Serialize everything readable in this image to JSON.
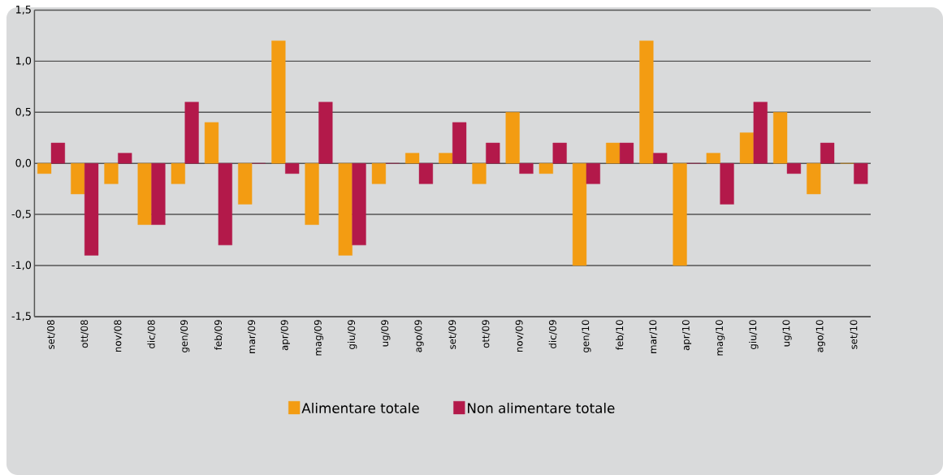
{
  "chart_data": {
    "type": "bar",
    "categories": [
      "set/08",
      "ott/08",
      "nov/08",
      "dic/08",
      "gen/09",
      "feb/09",
      "mar/09",
      "apr/09",
      "mag/09",
      "giu/09",
      "ug/09",
      "ago/09",
      "set/09",
      "ott/09",
      "nov/09",
      "dic/09",
      "gen/10",
      "feb/10",
      "mar/10",
      "apr/10",
      "mag/10",
      "giu/10",
      "ug/10",
      "ago/10",
      "set/10"
    ],
    "series": [
      {
        "name": "Alimentare totale",
        "color": "#f39c12",
        "values": [
          -0.1,
          -0.3,
          -0.2,
          -0.6,
          -0.2,
          0.4,
          -0.4,
          1.2,
          -0.6,
          -0.9,
          -0.2,
          0.1,
          0.1,
          -0.2,
          0.5,
          -0.1,
          -1.0,
          0.2,
          1.2,
          -1.0,
          0.1,
          0.3,
          0.5,
          -0.3,
          0.0
        ]
      },
      {
        "name": "Non alimentare totale",
        "color": "#b3194a",
        "values": [
          0.2,
          -0.9,
          0.1,
          -0.6,
          0.6,
          -0.8,
          0.0,
          -0.1,
          0.6,
          -0.8,
          0.0,
          -0.2,
          0.4,
          0.2,
          -0.1,
          0.2,
          -0.2,
          0.2,
          0.1,
          0.0,
          -0.4,
          0.6,
          -0.1,
          0.2,
          -0.2
        ]
      }
    ],
    "ylim": [
      -1.5,
      1.5
    ],
    "yticks": [
      {
        "value": -1.5,
        "label": "-1,5"
      },
      {
        "value": -1.0,
        "label": "-1,0"
      },
      {
        "value": -0.5,
        "label": "-0,5"
      },
      {
        "value": 0.0,
        "label": "0,0"
      },
      {
        "value": 0.5,
        "label": "0,5"
      },
      {
        "value": 1.0,
        "label": "1,0"
      },
      {
        "value": 1.5,
        "label": "1,5"
      }
    ],
    "grid": "y",
    "legend": "bottom"
  }
}
